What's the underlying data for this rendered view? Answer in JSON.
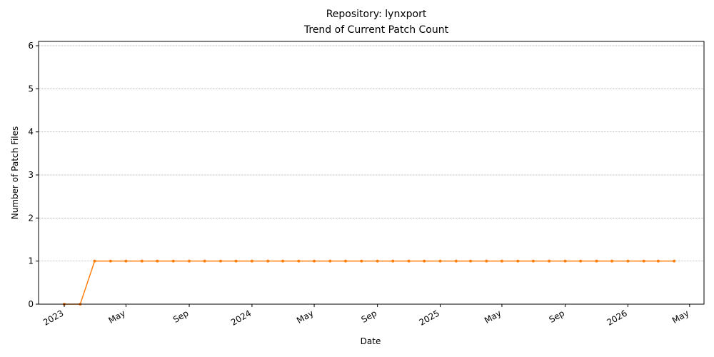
{
  "chart_data": {
    "type": "line",
    "title_line1": "Repository: lynxport",
    "title_line2": "Trend of Current Patch Count",
    "xlabel": "Date",
    "ylabel": "Number of Patch Files",
    "ylim": [
      0,
      6.1
    ],
    "yticks": [
      "0",
      "1",
      "2",
      "3",
      "4",
      "5",
      "6"
    ],
    "xlim": [
      "2022-11-12",
      "2026-05-29"
    ],
    "xticks": [
      {
        "date": "2023-01-01",
        "label": "2023"
      },
      {
        "date": "2023-05-01",
        "label": "May"
      },
      {
        "date": "2023-09-01",
        "label": "Sep"
      },
      {
        "date": "2024-01-01",
        "label": "2024"
      },
      {
        "date": "2024-05-01",
        "label": "May"
      },
      {
        "date": "2024-09-01",
        "label": "Sep"
      },
      {
        "date": "2025-01-01",
        "label": "2025"
      },
      {
        "date": "2025-05-01",
        "label": "May"
      },
      {
        "date": "2025-09-01",
        "label": "Sep"
      },
      {
        "date": "2026-01-01",
        "label": "2026"
      },
      {
        "date": "2026-05-01",
        "label": "May"
      }
    ],
    "grid": "y-major-dashed",
    "series": [
      {
        "color": "#ff7f0e",
        "x": [
          "2023-01-01",
          "2023-02-01",
          "2023-03-01",
          "2023-04-01",
          "2023-05-01",
          "2023-06-01",
          "2023-07-01",
          "2023-08-01",
          "2023-09-01",
          "2023-10-01",
          "2023-11-01",
          "2023-12-01",
          "2024-01-01",
          "2024-02-01",
          "2024-03-01",
          "2024-04-01",
          "2024-05-01",
          "2024-06-01",
          "2024-07-01",
          "2024-08-01",
          "2024-09-01",
          "2024-10-01",
          "2024-11-01",
          "2024-12-01",
          "2025-01-01",
          "2025-02-01",
          "2025-03-01",
          "2025-04-01",
          "2025-05-01",
          "2025-06-01",
          "2025-07-01",
          "2025-08-01",
          "2025-09-01",
          "2025-10-01",
          "2025-11-01",
          "2025-12-01",
          "2026-01-01",
          "2026-02-01",
          "2026-03-01",
          "2026-04-01"
        ],
        "values": [
          0,
          0,
          1,
          1,
          1,
          1,
          1,
          1,
          1,
          1,
          1,
          1,
          1,
          1,
          1,
          1,
          1,
          1,
          1,
          1,
          1,
          1,
          1,
          1,
          1,
          1,
          1,
          1,
          1,
          1,
          1,
          1,
          1,
          1,
          1,
          1,
          1,
          1,
          1,
          1
        ]
      }
    ]
  }
}
